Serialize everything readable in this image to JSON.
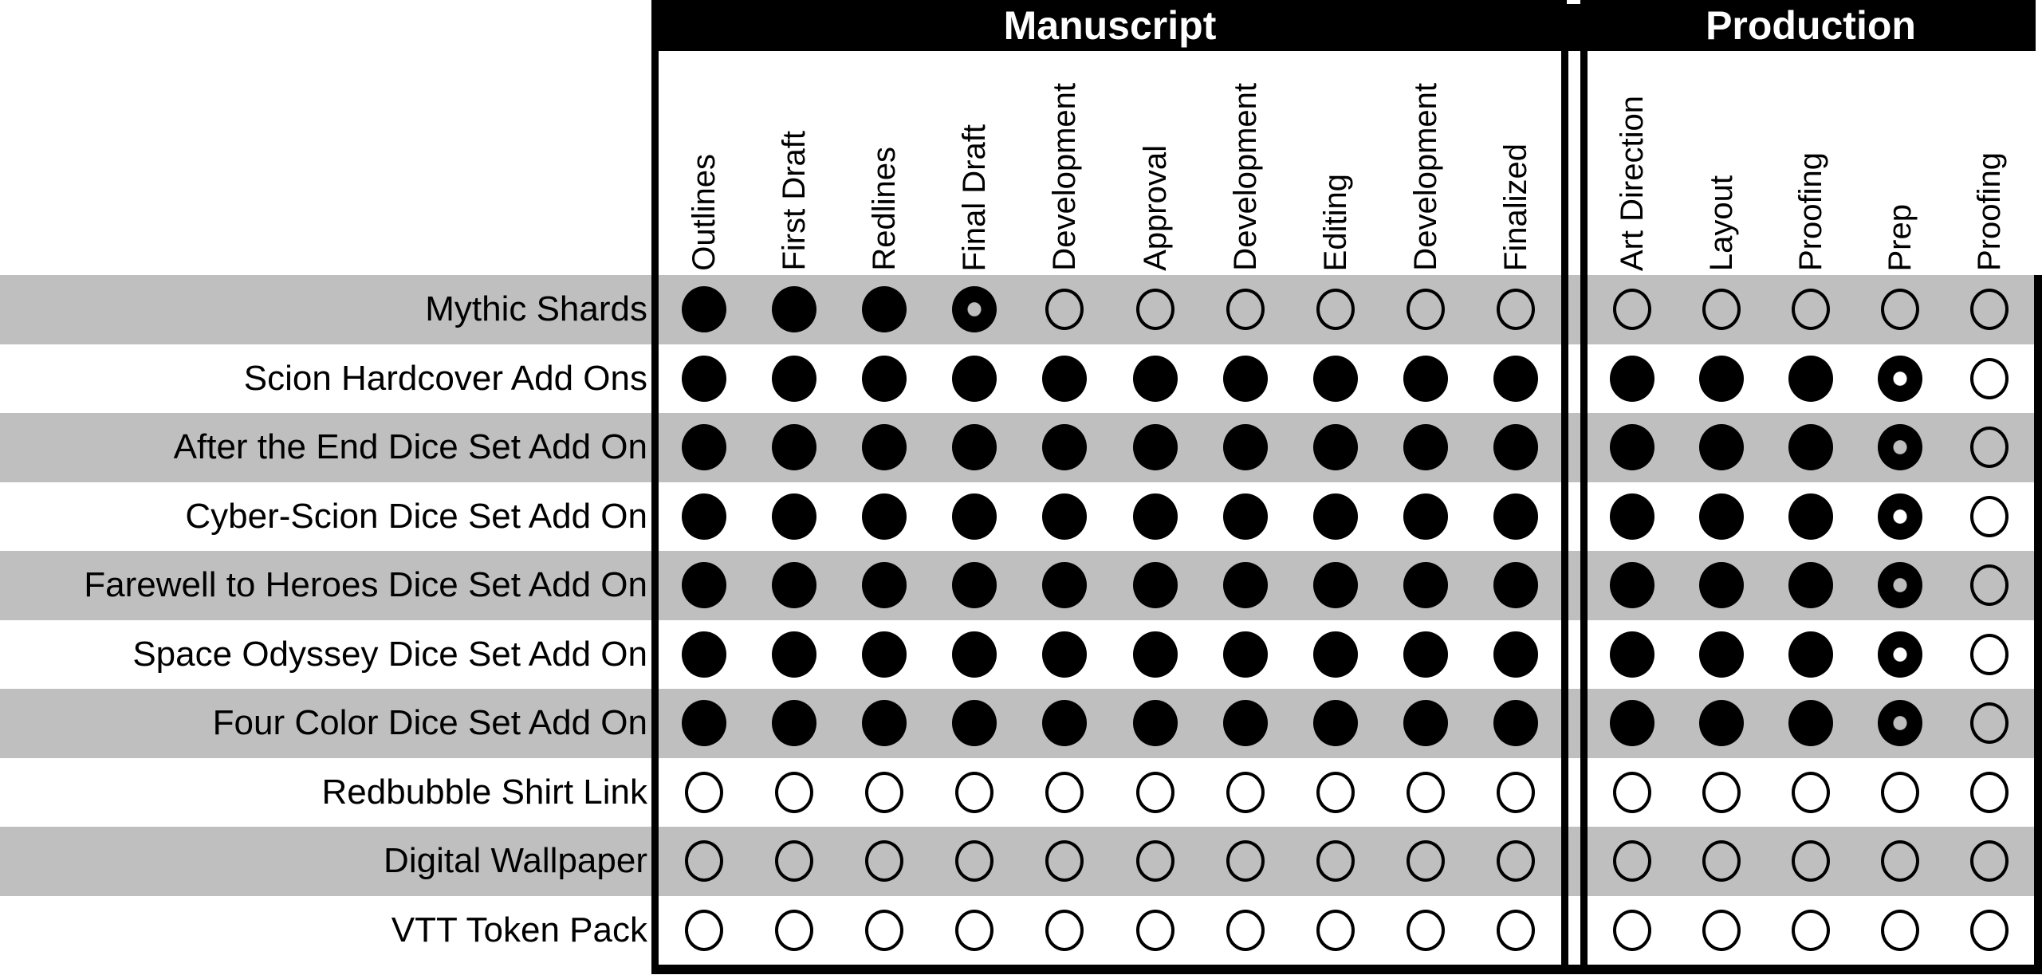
{
  "colors": {
    "stripe_gray": "#bfbfbf",
    "row_white": "#ffffff",
    "header_bg": "#000000",
    "header_text": "#ffffff",
    "mark_black": "#000000"
  },
  "legend": {
    "complete": "filled black circle",
    "in_progress": "black circle with small hole",
    "not_started": "hollow circle outline"
  },
  "chart_data": {
    "type": "table",
    "column_groups": [
      {
        "key": "manuscript",
        "label": "Manuscript",
        "columns": [
          "Outlines",
          "First Draft",
          "Redlines",
          "Final Draft",
          "Development",
          "Approval",
          "Development",
          "Editing",
          "Development",
          "Finalized"
        ]
      },
      {
        "key": "production",
        "label": "Production",
        "columns": [
          "Art Direction",
          "Layout",
          "Proofing",
          "Prep",
          "Proofing"
        ]
      }
    ],
    "status_values": [
      "complete",
      "in_progress",
      "not_started"
    ],
    "rows": [
      {
        "label": "Mythic Shards",
        "manuscript": [
          "complete",
          "complete",
          "complete",
          "in_progress",
          "not_started",
          "not_started",
          "not_started",
          "not_started",
          "not_started",
          "not_started"
        ],
        "production": [
          "not_started",
          "not_started",
          "not_started",
          "not_started",
          "not_started"
        ]
      },
      {
        "label": "Scion Hardcover Add Ons",
        "manuscript": [
          "complete",
          "complete",
          "complete",
          "complete",
          "complete",
          "complete",
          "complete",
          "complete",
          "complete",
          "complete"
        ],
        "production": [
          "complete",
          "complete",
          "complete",
          "in_progress",
          "not_started"
        ]
      },
      {
        "label": "After the End Dice Set Add On",
        "manuscript": [
          "complete",
          "complete",
          "complete",
          "complete",
          "complete",
          "complete",
          "complete",
          "complete",
          "complete",
          "complete"
        ],
        "production": [
          "complete",
          "complete",
          "complete",
          "in_progress",
          "not_started"
        ]
      },
      {
        "label": "Cyber-Scion Dice Set Add On",
        "manuscript": [
          "complete",
          "complete",
          "complete",
          "complete",
          "complete",
          "complete",
          "complete",
          "complete",
          "complete",
          "complete"
        ],
        "production": [
          "complete",
          "complete",
          "complete",
          "in_progress",
          "not_started"
        ]
      },
      {
        "label": "Farewell to Heroes Dice Set Add On",
        "manuscript": [
          "complete",
          "complete",
          "complete",
          "complete",
          "complete",
          "complete",
          "complete",
          "complete",
          "complete",
          "complete"
        ],
        "production": [
          "complete",
          "complete",
          "complete",
          "in_progress",
          "not_started"
        ]
      },
      {
        "label": "Space Odyssey Dice Set Add On",
        "manuscript": [
          "complete",
          "complete",
          "complete",
          "complete",
          "complete",
          "complete",
          "complete",
          "complete",
          "complete",
          "complete"
        ],
        "production": [
          "complete",
          "complete",
          "complete",
          "in_progress",
          "not_started"
        ]
      },
      {
        "label": "Four Color Dice Set Add On",
        "manuscript": [
          "complete",
          "complete",
          "complete",
          "complete",
          "complete",
          "complete",
          "complete",
          "complete",
          "complete",
          "complete"
        ],
        "production": [
          "complete",
          "complete",
          "complete",
          "in_progress",
          "not_started"
        ]
      },
      {
        "label": "Redbubble Shirt Link",
        "manuscript": [
          "not_started",
          "not_started",
          "not_started",
          "not_started",
          "not_started",
          "not_started",
          "not_started",
          "not_started",
          "not_started",
          "not_started"
        ],
        "production": [
          "not_started",
          "not_started",
          "not_started",
          "not_started",
          "not_started"
        ]
      },
      {
        "label": "Digital Wallpaper",
        "manuscript": [
          "not_started",
          "not_started",
          "not_started",
          "not_started",
          "not_started",
          "not_started",
          "not_started",
          "not_started",
          "not_started",
          "not_started"
        ],
        "production": [
          "not_started",
          "not_started",
          "not_started",
          "not_started",
          "not_started"
        ]
      },
      {
        "label": "VTT Token Pack",
        "manuscript": [
          "not_started",
          "not_started",
          "not_started",
          "not_started",
          "not_started",
          "not_started",
          "not_started",
          "not_started",
          "not_started",
          "not_started"
        ],
        "production": [
          "not_started",
          "not_started",
          "not_started",
          "not_started",
          "not_started"
        ]
      }
    ]
  }
}
